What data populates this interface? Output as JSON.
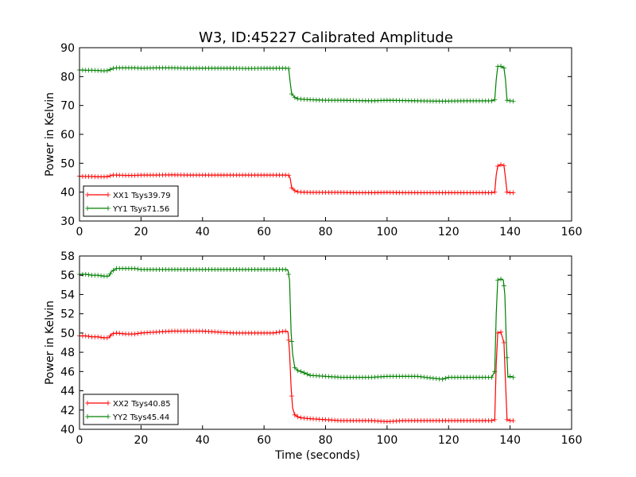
{
  "title": "W3, ID:45227 Calibrated Amplitude",
  "colors": {
    "xx": "#ff0000",
    "yy": "#008000"
  },
  "chart_data": [
    {
      "type": "line",
      "ylabel": "Power in Kelvin",
      "xlabel": "",
      "xlim": [
        0,
        160
      ],
      "ylim": [
        30,
        90
      ],
      "xticks": [
        0,
        20,
        40,
        60,
        80,
        100,
        120,
        140,
        160
      ],
      "yticks": [
        30,
        40,
        50,
        60,
        70,
        80,
        90
      ],
      "grid": false,
      "legend_position": "lower-left",
      "series": [
        {
          "name": "XX1 Tsys39.79",
          "color": "#ff0000",
          "marker": "+",
          "points": [
            [
              0,
              45.5
            ],
            [
              2,
              45.4
            ],
            [
              4,
              45.4
            ],
            [
              6,
              45.3
            ],
            [
              8,
              45.3
            ],
            [
              9.5,
              45.4
            ],
            [
              10.5,
              45.9
            ],
            [
              12,
              45.9
            ],
            [
              15,
              45.8
            ],
            [
              18,
              45.8
            ],
            [
              20,
              45.9
            ],
            [
              25,
              45.9
            ],
            [
              30,
              46.0
            ],
            [
              35,
              45.9
            ],
            [
              40,
              45.9
            ],
            [
              45,
              45.9
            ],
            [
              50,
              45.9
            ],
            [
              55,
              45.9
            ],
            [
              60,
              45.9
            ],
            [
              63,
              45.9
            ],
            [
              65,
              45.9
            ],
            [
              67,
              45.9
            ],
            [
              68,
              45.8
            ],
            [
              68.5,
              44.8
            ],
            [
              69,
              41.5
            ],
            [
              70,
              40.5
            ],
            [
              71,
              40.1
            ],
            [
              72,
              40.0
            ],
            [
              75,
              39.9
            ],
            [
              80,
              39.9
            ],
            [
              85,
              39.9
            ],
            [
              90,
              39.8
            ],
            [
              95,
              39.8
            ],
            [
              100,
              39.9
            ],
            [
              105,
              39.8
            ],
            [
              110,
              39.8
            ],
            [
              115,
              39.8
            ],
            [
              120,
              39.8
            ],
            [
              125,
              39.8
            ],
            [
              130,
              39.8
            ],
            [
              134,
              39.8
            ],
            [
              135,
              40.0
            ],
            [
              135.5,
              46.0
            ],
            [
              136,
              49.0
            ],
            [
              137,
              49.5
            ],
            [
              138,
              49.2
            ],
            [
              138.5,
              45.0
            ],
            [
              139,
              40.0
            ],
            [
              140,
              39.8
            ],
            [
              141,
              39.8
            ]
          ]
        },
        {
          "name": "YY1 Tsys71.56",
          "color": "#008000",
          "marker": "+",
          "points": [
            [
              0,
              82.3
            ],
            [
              2,
              82.2
            ],
            [
              4,
              82.2
            ],
            [
              6,
              82.1
            ],
            [
              8,
              82.0
            ],
            [
              9.5,
              82.1
            ],
            [
              10.5,
              82.8
            ],
            [
              12,
              83.0
            ],
            [
              15,
              83.0
            ],
            [
              18,
              83.0
            ],
            [
              20,
              82.9
            ],
            [
              25,
              83.0
            ],
            [
              30,
              83.0
            ],
            [
              35,
              82.9
            ],
            [
              40,
              82.9
            ],
            [
              45,
              82.9
            ],
            [
              50,
              82.9
            ],
            [
              55,
              82.8
            ],
            [
              60,
              82.9
            ],
            [
              63,
              82.9
            ],
            [
              65,
              82.9
            ],
            [
              67,
              82.9
            ],
            [
              68,
              82.8
            ],
            [
              68.5,
              78.0
            ],
            [
              69,
              74.0
            ],
            [
              70,
              72.8
            ],
            [
              71,
              72.3
            ],
            [
              72,
              72.2
            ],
            [
              75,
              72.0
            ],
            [
              80,
              71.8
            ],
            [
              85,
              71.8
            ],
            [
              90,
              71.7
            ],
            [
              95,
              71.6
            ],
            [
              100,
              71.8
            ],
            [
              105,
              71.7
            ],
            [
              110,
              71.6
            ],
            [
              115,
              71.5
            ],
            [
              120,
              71.5
            ],
            [
              125,
              71.6
            ],
            [
              130,
              71.6
            ],
            [
              134,
              71.6
            ],
            [
              135,
              72.0
            ],
            [
              135.5,
              79.0
            ],
            [
              136,
              83.5
            ],
            [
              137,
              83.6
            ],
            [
              138,
              83.0
            ],
            [
              138.5,
              79.0
            ],
            [
              139,
              71.8
            ],
            [
              140,
              71.6
            ],
            [
              141,
              71.5
            ]
          ]
        }
      ]
    },
    {
      "type": "line",
      "ylabel": "Power in Kelvin",
      "xlabel": "Time (seconds)",
      "xlim": [
        0,
        160
      ],
      "ylim": [
        40,
        58
      ],
      "xticks": [
        0,
        20,
        40,
        60,
        80,
        100,
        120,
        140,
        160
      ],
      "yticks": [
        40,
        42,
        44,
        46,
        48,
        50,
        52,
        54,
        56,
        58
      ],
      "grid": false,
      "legend_position": "lower-left",
      "series": [
        {
          "name": "XX2 Tsys40.85",
          "color": "#ff0000",
          "marker": "+",
          "points": [
            [
              0,
              49.7
            ],
            [
              2,
              49.7
            ],
            [
              4,
              49.6
            ],
            [
              6,
              49.6
            ],
            [
              8,
              49.5
            ],
            [
              9.5,
              49.5
            ],
            [
              10.5,
              49.9
            ],
            [
              12,
              50.0
            ],
            [
              15,
              49.9
            ],
            [
              18,
              49.9
            ],
            [
              20,
              50.0
            ],
            [
              25,
              50.1
            ],
            [
              30,
              50.2
            ],
            [
              35,
              50.2
            ],
            [
              40,
              50.2
            ],
            [
              45,
              50.1
            ],
            [
              50,
              50.0
            ],
            [
              55,
              50.0
            ],
            [
              60,
              50.0
            ],
            [
              63,
              50.0
            ],
            [
              65,
              50.1
            ],
            [
              67,
              50.2
            ],
            [
              67.8,
              50.1
            ],
            [
              68.3,
              48.0
            ],
            [
              68.8,
              44.3
            ],
            [
              69.3,
              42.2
            ],
            [
              70,
              41.5
            ],
            [
              71,
              41.3
            ],
            [
              72,
              41.2
            ],
            [
              75,
              41.1
            ],
            [
              80,
              41.0
            ],
            [
              85,
              40.9
            ],
            [
              90,
              40.9
            ],
            [
              95,
              40.9
            ],
            [
              100,
              40.8
            ],
            [
              105,
              40.9
            ],
            [
              110,
              40.9
            ],
            [
              115,
              40.9
            ],
            [
              120,
              40.9
            ],
            [
              125,
              40.9
            ],
            [
              130,
              40.9
            ],
            [
              134,
              40.9
            ],
            [
              135,
              41.0
            ],
            [
              135.5,
              46.8
            ],
            [
              136,
              50.0
            ],
            [
              137,
              50.1
            ],
            [
              138,
              49.0
            ],
            [
              138.5,
              45.0
            ],
            [
              139,
              41.0
            ],
            [
              140,
              40.9
            ],
            [
              141,
              40.9
            ]
          ]
        },
        {
          "name": "YY2 Tsys45.44",
          "color": "#008000",
          "marker": "+",
          "points": [
            [
              0,
              56.1
            ],
            [
              2,
              56.1
            ],
            [
              4,
              56.0
            ],
            [
              6,
              56.0
            ],
            [
              8,
              55.9
            ],
            [
              9.5,
              55.9
            ],
            [
              10.5,
              56.4
            ],
            [
              12,
              56.7
            ],
            [
              15,
              56.7
            ],
            [
              18,
              56.7
            ],
            [
              20,
              56.6
            ],
            [
              25,
              56.6
            ],
            [
              30,
              56.6
            ],
            [
              35,
              56.6
            ],
            [
              40,
              56.6
            ],
            [
              45,
              56.6
            ],
            [
              50,
              56.6
            ],
            [
              55,
              56.6
            ],
            [
              60,
              56.6
            ],
            [
              63,
              56.6
            ],
            [
              65,
              56.6
            ],
            [
              67,
              56.6
            ],
            [
              67.8,
              56.5
            ],
            [
              68.3,
              55.5
            ],
            [
              68.8,
              50.0
            ],
            [
              69.3,
              47.8
            ],
            [
              70,
              46.4
            ],
            [
              71,
              46.1
            ],
            [
              72,
              46.0
            ],
            [
              75,
              45.6
            ],
            [
              80,
              45.5
            ],
            [
              85,
              45.4
            ],
            [
              90,
              45.4
            ],
            [
              95,
              45.4
            ],
            [
              100,
              45.5
            ],
            [
              105,
              45.5
            ],
            [
              110,
              45.5
            ],
            [
              115,
              45.3
            ],
            [
              118,
              45.2
            ],
            [
              120,
              45.4
            ],
            [
              125,
              45.4
            ],
            [
              130,
              45.4
            ],
            [
              134,
              45.4
            ],
            [
              135,
              46.0
            ],
            [
              135.5,
              52.0
            ],
            [
              136,
              55.5
            ],
            [
              137,
              55.6
            ],
            [
              137.8,
              55.5
            ],
            [
              138.3,
              54.0
            ],
            [
              138.8,
              48.8
            ],
            [
              139.3,
              45.4
            ],
            [
              140,
              45.5
            ],
            [
              141,
              45.4
            ]
          ]
        }
      ]
    }
  ]
}
